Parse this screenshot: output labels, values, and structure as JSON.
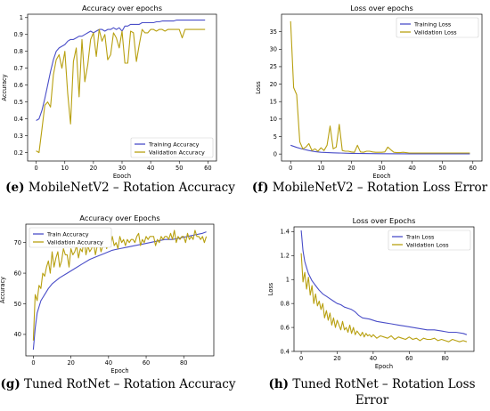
{
  "captions": [
    {
      "letter": "(e)",
      "text": "MobileNetV2 – Rotation Accuracy"
    },
    {
      "letter": "(f)",
      "text": "MobileNetV2 – Rotation Loss Error"
    },
    {
      "letter": "(g)",
      "text": "Tuned RotNet – Rotation Accuracy"
    },
    {
      "letter": "(h)",
      "text": "Tuned RotNet – Rotation Loss",
      "text2": "Error"
    }
  ],
  "chart_data": [
    {
      "id": "e",
      "type": "line",
      "title": "Accuracy over epochs",
      "xlabel": "Epoch",
      "ylabel": "Accuracy",
      "xlim": [
        -3,
        63
      ],
      "ylim": [
        0.15,
        1.02
      ],
      "xticks": [
        0,
        10,
        20,
        30,
        40,
        50,
        60
      ],
      "yticks": [
        0.2,
        0.3,
        0.4,
        0.5,
        0.6,
        0.7,
        0.8,
        0.9,
        1.0
      ],
      "legend": "bottom-right",
      "series": [
        {
          "name": "Training Accuracy",
          "color": "#4a4ec8",
          "x": [
            0,
            1,
            2,
            3,
            4,
            5,
            6,
            7,
            8,
            9,
            10,
            11,
            12,
            13,
            14,
            15,
            16,
            17,
            18,
            19,
            20,
            21,
            22,
            23,
            24,
            25,
            26,
            27,
            28,
            29,
            30,
            31,
            32,
            33,
            34,
            35,
            36,
            37,
            38,
            39,
            40,
            41,
            42,
            43,
            44,
            45,
            46,
            47,
            48,
            49,
            50,
            51,
            52,
            53,
            54,
            55,
            56,
            57,
            58,
            59
          ],
          "y": [
            0.39,
            0.4,
            0.45,
            0.52,
            0.6,
            0.68,
            0.75,
            0.8,
            0.82,
            0.83,
            0.84,
            0.86,
            0.87,
            0.87,
            0.88,
            0.89,
            0.89,
            0.9,
            0.91,
            0.92,
            0.91,
            0.92,
            0.93,
            0.93,
            0.92,
            0.93,
            0.93,
            0.94,
            0.93,
            0.94,
            0.92,
            0.95,
            0.95,
            0.96,
            0.96,
            0.96,
            0.96,
            0.97,
            0.97,
            0.97,
            0.97,
            0.97,
            0.975,
            0.975,
            0.98,
            0.98,
            0.98,
            0.98,
            0.98,
            0.985,
            0.985,
            0.985,
            0.985,
            0.985,
            0.985,
            0.985,
            0.985,
            0.985,
            0.985,
            0.985
          ]
        },
        {
          "name": "Validation Accuracy",
          "color": "#b8a010",
          "x": [
            0,
            1,
            2,
            3,
            4,
            5,
            6,
            7,
            8,
            9,
            10,
            11,
            12,
            13,
            14,
            15,
            16,
            17,
            18,
            19,
            20,
            21,
            22,
            23,
            24,
            25,
            26,
            27,
            28,
            29,
            30,
            31,
            32,
            33,
            34,
            35,
            36,
            37,
            38,
            39,
            40,
            41,
            42,
            43,
            44,
            45,
            46,
            47,
            48,
            49,
            50,
            51,
            52,
            53,
            54,
            55,
            56,
            57,
            58,
            59
          ],
          "y": [
            0.21,
            0.2,
            0.34,
            0.48,
            0.5,
            0.47,
            0.66,
            0.75,
            0.78,
            0.7,
            0.8,
            0.55,
            0.37,
            0.74,
            0.82,
            0.53,
            0.87,
            0.62,
            0.72,
            0.87,
            0.91,
            0.77,
            0.93,
            0.86,
            0.9,
            0.75,
            0.78,
            0.91,
            0.88,
            0.82,
            0.92,
            0.73,
            0.73,
            0.92,
            0.91,
            0.74,
            0.84,
            0.93,
            0.91,
            0.91,
            0.93,
            0.93,
            0.92,
            0.93,
            0.93,
            0.92,
            0.93,
            0.93,
            0.93,
            0.93,
            0.93,
            0.88,
            0.93,
            0.93,
            0.93,
            0.93,
            0.93,
            0.93,
            0.93,
            0.93
          ]
        }
      ]
    },
    {
      "id": "f",
      "type": "line",
      "title": "Loss over epochs",
      "xlabel": "Epoch",
      "ylabel": "Loss",
      "xlim": [
        -3,
        63
      ],
      "ylim": [
        -2,
        40
      ],
      "xticks": [
        0,
        10,
        20,
        30,
        40,
        50,
        60
      ],
      "yticks": [
        0,
        5,
        10,
        15,
        20,
        25,
        30,
        35
      ],
      "legend": "top-right",
      "series": [
        {
          "name": "Training Loss",
          "color": "#4a4ec8",
          "x": [
            0,
            2,
            4,
            6,
            8,
            10,
            14,
            20,
            30,
            40,
            50,
            59
          ],
          "y": [
            2.5,
            1.9,
            1.4,
            1.0,
            0.7,
            0.5,
            0.35,
            0.2,
            0.1,
            0.05,
            0.04,
            0.03
          ]
        },
        {
          "name": "Validation Loss",
          "color": "#b8a010",
          "x": [
            0,
            1,
            2,
            3,
            4,
            5,
            6,
            7,
            8,
            9,
            10,
            11,
            12,
            13,
            14,
            15,
            16,
            17,
            18,
            19,
            20,
            21,
            22,
            23,
            24,
            25,
            26,
            27,
            28,
            29,
            30,
            31,
            32,
            33,
            34,
            35,
            36,
            37,
            38,
            39,
            40,
            45,
            50,
            55,
            59
          ],
          "y": [
            38,
            19,
            17,
            3.5,
            1.5,
            2,
            3.0,
            1,
            1.5,
            0.8,
            1.8,
            1,
            2.5,
            8,
            1.5,
            2,
            8.5,
            1,
            0.8,
            0.8,
            0.6,
            0.5,
            2.5,
            0.6,
            0.5,
            0.8,
            0.8,
            0.6,
            0.5,
            0.5,
            0.5,
            0.6,
            2.0,
            1.2,
            0.5,
            0.4,
            0.4,
            0.5,
            0.4,
            0.3,
            0.3,
            0.3,
            0.3,
            0.3,
            0.3
          ]
        }
      ]
    },
    {
      "id": "g",
      "type": "line",
      "title": "Accuracy over Epochs",
      "xlabel": "Epoch",
      "ylabel": "Accuracy",
      "xlim": [
        -4,
        96
      ],
      "ylim": [
        33,
        76
      ],
      "xticks": [
        0,
        20,
        40,
        60,
        80
      ],
      "yticks": [
        40,
        50,
        60,
        70
      ],
      "legend": "top-left",
      "series": [
        {
          "name": "Train Accuracy",
          "color": "#4a4ec8",
          "x": [
            0,
            1,
            2,
            4,
            6,
            8,
            10,
            14,
            18,
            22,
            26,
            30,
            34,
            38,
            42,
            46,
            50,
            54,
            58,
            62,
            66,
            70,
            74,
            78,
            82,
            86,
            90,
            92
          ],
          "y": [
            35,
            42,
            47,
            51,
            53,
            55,
            56.5,
            58.5,
            60,
            61.5,
            63,
            64.5,
            65.5,
            66.5,
            67.5,
            68,
            68.5,
            69,
            69.5,
            70,
            70.5,
            71,
            71,
            71.5,
            72,
            72.5,
            73,
            73.5
          ]
        },
        {
          "name": "Validation Accuracy",
          "color": "#b8a010",
          "x": [
            0,
            1,
            2,
            3,
            4,
            5,
            6,
            7,
            8,
            9,
            10,
            11,
            12,
            13,
            14,
            15,
            16,
            17,
            18,
            19,
            20,
            21,
            22,
            23,
            24,
            25,
            26,
            27,
            28,
            29,
            30,
            31,
            32,
            33,
            34,
            35,
            36,
            37,
            38,
            39,
            40,
            41,
            42,
            43,
            44,
            45,
            46,
            47,
            48,
            49,
            50,
            51,
            52,
            53,
            54,
            55,
            56,
            57,
            58,
            59,
            60,
            61,
            62,
            63,
            64,
            65,
            66,
            67,
            68,
            69,
            70,
            71,
            72,
            73,
            74,
            75,
            76,
            77,
            78,
            79,
            80,
            81,
            82,
            83,
            84,
            85,
            86,
            87,
            88,
            89,
            90,
            91,
            92
          ],
          "y": [
            38,
            53,
            51,
            56,
            55,
            60,
            59,
            62,
            64,
            60,
            67,
            62,
            65,
            67,
            62,
            64,
            68,
            66,
            66,
            62,
            68,
            66,
            67,
            69,
            65,
            68,
            67,
            71,
            66,
            69,
            67,
            68,
            70,
            66,
            69,
            70,
            67,
            69,
            71,
            68,
            70,
            69,
            72,
            69,
            70,
            68,
            72,
            70,
            71,
            69,
            71,
            70,
            71,
            71,
            70,
            72,
            73,
            69,
            71,
            70,
            72,
            71,
            72,
            72,
            72,
            69,
            71,
            70,
            72,
            71,
            72,
            72,
            71,
            73,
            71,
            74,
            70,
            72,
            71,
            72,
            72,
            70,
            73,
            71,
            72,
            71,
            74,
            72,
            72,
            71,
            72,
            70,
            72
          ]
        }
      ]
    },
    {
      "id": "h",
      "type": "line",
      "title": "Loss over Epochs",
      "xlabel": "Epoch",
      "ylabel": "Loss",
      "xlim": [
        -4,
        96
      ],
      "ylim": [
        0.4,
        1.44
      ],
      "xticks": [
        0,
        20,
        40,
        60,
        80
      ],
      "yticks": [
        0.4,
        0.6,
        0.8,
        1.0,
        1.2,
        1.4
      ],
      "legend": "top-right",
      "series": [
        {
          "name": "Train Loss",
          "color": "#4a4ec8",
          "x": [
            0,
            1,
            2,
            3,
            4,
            6,
            8,
            10,
            12,
            14,
            16,
            18,
            20,
            22,
            24,
            26,
            28,
            30,
            32,
            34,
            38,
            42,
            46,
            50,
            54,
            58,
            62,
            66,
            70,
            74,
            78,
            82,
            86,
            90,
            92
          ],
          "y": [
            1.41,
            1.24,
            1.15,
            1.1,
            1.05,
            0.99,
            0.95,
            0.91,
            0.88,
            0.86,
            0.84,
            0.82,
            0.8,
            0.79,
            0.77,
            0.76,
            0.75,
            0.73,
            0.7,
            0.68,
            0.67,
            0.65,
            0.64,
            0.63,
            0.62,
            0.61,
            0.6,
            0.59,
            0.58,
            0.58,
            0.57,
            0.56,
            0.56,
            0.55,
            0.54
          ]
        },
        {
          "name": "Validation Loss",
          "color": "#b8a010",
          "x": [
            0,
            1,
            2,
            3,
            4,
            5,
            6,
            7,
            8,
            9,
            10,
            11,
            12,
            13,
            14,
            15,
            16,
            17,
            18,
            19,
            20,
            21,
            22,
            23,
            24,
            25,
            26,
            27,
            28,
            29,
            30,
            31,
            32,
            33,
            34,
            35,
            36,
            37,
            38,
            39,
            40,
            42,
            44,
            46,
            48,
            50,
            52,
            54,
            56,
            58,
            60,
            62,
            64,
            66,
            68,
            70,
            72,
            74,
            76,
            78,
            80,
            82,
            84,
            86,
            88,
            90,
            92
          ],
          "y": [
            1.22,
            0.98,
            1.06,
            0.92,
            1.02,
            0.87,
            0.95,
            0.8,
            0.88,
            0.78,
            0.82,
            0.75,
            0.8,
            0.68,
            0.74,
            0.66,
            0.72,
            0.62,
            0.68,
            0.6,
            0.66,
            0.62,
            0.58,
            0.65,
            0.58,
            0.6,
            0.56,
            0.62,
            0.55,
            0.6,
            0.54,
            0.57,
            0.55,
            0.53,
            0.56,
            0.52,
            0.55,
            0.53,
            0.54,
            0.52,
            0.54,
            0.51,
            0.53,
            0.52,
            0.51,
            0.53,
            0.5,
            0.52,
            0.51,
            0.5,
            0.52,
            0.5,
            0.51,
            0.49,
            0.51,
            0.5,
            0.5,
            0.51,
            0.49,
            0.5,
            0.49,
            0.48,
            0.5,
            0.49,
            0.48,
            0.49,
            0.48
          ]
        }
      ]
    }
  ]
}
